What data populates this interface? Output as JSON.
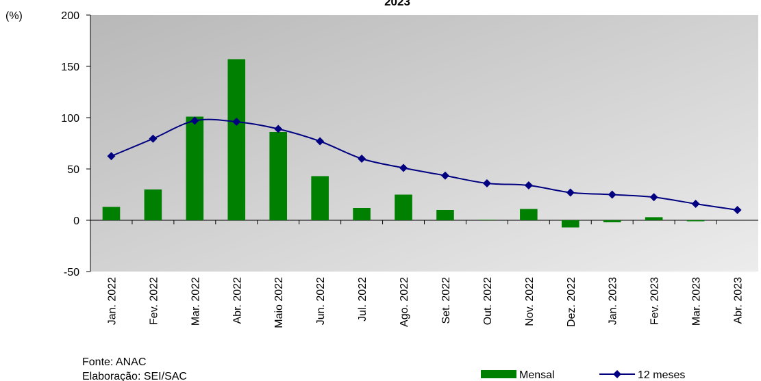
{
  "chart_data": {
    "type": "bar_line",
    "title": "2023",
    "y_axis_label": "(%)",
    "categories": [
      "Jan. 2022",
      "Fev. 2022",
      "Mar. 2022",
      "Abr. 2022",
      "Maio 2022",
      "Jun. 2022",
      "Jul. 2022",
      "Ago. 2022",
      "Set. 2022",
      "Out. 2022",
      "Nov. 2022",
      "Dez. 2022",
      "Jan. 2023",
      "Fev. 2023",
      "Mar. 2023",
      "Abr. 2023"
    ],
    "series": [
      {
        "name": "Mensal",
        "kind": "bar",
        "color": "#008000",
        "values": [
          13,
          30,
          101,
          157,
          86,
          43,
          12,
          25,
          10,
          0.5,
          11,
          -7,
          -2,
          3,
          -1,
          null
        ]
      },
      {
        "name": "12 meses",
        "kind": "line",
        "color": "#000080",
        "values": [
          62.5,
          79.5,
          97,
          96,
          89,
          77,
          60,
          51,
          43.5,
          36,
          34,
          27,
          25,
          22.5,
          16,
          10
        ]
      }
    ],
    "ylim": [
      -50,
      200
    ],
    "yticks": [
      -50,
      0,
      50,
      100,
      150,
      200
    ],
    "source": "Fonte: ANAC",
    "credit": "Elaboração: SEI/SAC"
  }
}
